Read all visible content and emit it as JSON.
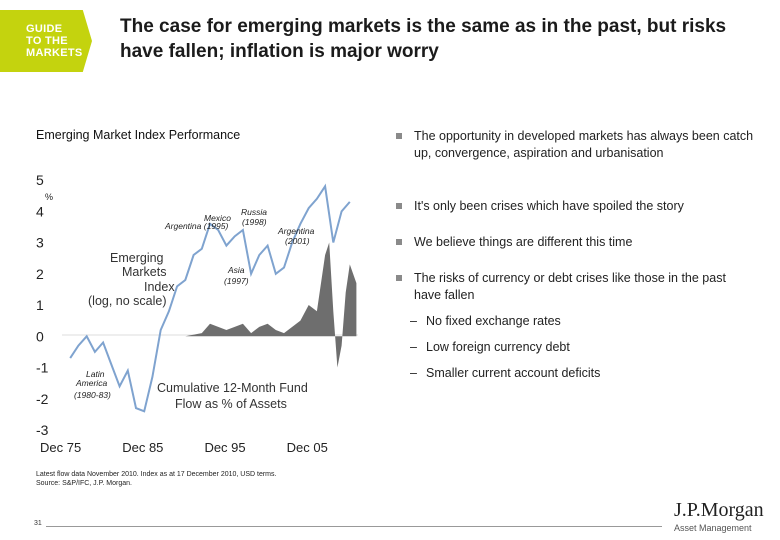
{
  "header": {
    "badge_lines": [
      "GUIDE",
      "TO THE",
      "MARKETS"
    ],
    "title": "The case for emerging markets is the same as in the past, but risks have fallen; inflation is major worry"
  },
  "chart_data": {
    "type": "line",
    "title": "Emerging Market Index Performance",
    "y_unit": "%",
    "ylim": [
      -3,
      5
    ],
    "y_ticks": [
      "5",
      "4",
      "3",
      "2",
      "1",
      "0",
      "-1",
      "-2",
      "-3"
    ],
    "x_ticks": [
      "Dec 75",
      "Dec 85",
      "Dec 95",
      "Dec 05"
    ],
    "grid": false,
    "series": [
      {
        "name": "Emerging Markets Index (log, no scale)",
        "kind": "line",
        "color": "#7fa3cf",
        "x": [
          1976,
          1977,
          1978,
          1979,
          1980,
          1981,
          1982,
          1983,
          1984,
          1985,
          1986,
          1987,
          1988,
          1989,
          1990,
          1991,
          1992,
          1993,
          1994,
          1995,
          1996,
          1997,
          1998,
          1999,
          2000,
          2001,
          2002,
          2003,
          2004,
          2005,
          2006,
          2007,
          2008,
          2009,
          2010
        ],
        "values": [
          -0.7,
          -0.3,
          0.0,
          -0.5,
          -0.2,
          -0.9,
          -1.6,
          -1.1,
          -2.3,
          -2.4,
          -1.3,
          0.2,
          0.8,
          1.6,
          1.8,
          2.6,
          2.8,
          3.6,
          3.4,
          2.9,
          3.2,
          3.4,
          2.0,
          2.6,
          2.9,
          2.0,
          2.2,
          3.0,
          3.6,
          4.1,
          4.4,
          4.8,
          3.0,
          4.0,
          4.3
        ]
      },
      {
        "name": "Cumulative 12-Month Fund Flow as % of Assets",
        "kind": "area",
        "color": "#6e6e6e",
        "x": [
          1976,
          1990,
          1992,
          1993,
          1994,
          1995,
          1996,
          1997,
          1998,
          1999,
          2000,
          2001,
          2002,
          2003,
          2004,
          2005,
          2006,
          2007,
          2007.5,
          2008,
          2008.5,
          2009,
          2009.5,
          2010,
          2010.8
        ],
        "values": [
          0,
          0,
          0.1,
          0.4,
          0.3,
          0.2,
          0.3,
          0.4,
          0.1,
          0.3,
          0.4,
          0.2,
          0.1,
          0.3,
          0.5,
          1.0,
          0.8,
          2.6,
          3.0,
          0.8,
          -1.0,
          -0.3,
          1.4,
          2.3,
          1.7
        ]
      }
    ],
    "annotations": [
      {
        "text": "Latin America (1980-83)",
        "x": 1980,
        "y": -1.5
      },
      {
        "text": "Mexico Argentina (1995)",
        "x": 1993,
        "y": 3.6
      },
      {
        "text": "Russia (1998)",
        "x": 1998,
        "y": 3.7
      },
      {
        "text": "Argentina (2001)",
        "x": 2001,
        "y": 3.0
      },
      {
        "text": "Asia (1997)",
        "x": 1997,
        "y": 1.9
      },
      {
        "text": "Emerging Markets Index (log, no scale)",
        "x": 1983,
        "y": 2.5
      },
      {
        "text": "Cumulative 12-Month Fund Flow as % of Assets",
        "x": 1989,
        "y": -1.7
      }
    ]
  },
  "labels": {
    "latin": [
      "Latin",
      "America",
      "(1980-83)"
    ],
    "mexico": [
      "Mexico",
      "Argentina (1995)"
    ],
    "russia": [
      "Russia",
      "(1998)"
    ],
    "argentina": [
      "Argentina",
      "(2001)"
    ],
    "asia": [
      "Asia",
      "(1997)"
    ],
    "em_index": [
      "Emerging",
      "Markets",
      "Index",
      "(log, no scale)"
    ],
    "fund_flow": [
      "Cumulative 12-Month Fund",
      "Flow as % of Assets"
    ]
  },
  "footnote": [
    "Latest flow data November 2010. Index as at 17 December 2010, USD terms.",
    "Source: S&P/IFC, J.P. Morgan."
  ],
  "bullets": [
    {
      "text": "The opportunity in developed markets has always been catch up, convergence, aspiration and urbanisation"
    },
    {
      "text": "It's only been crises which have spoiled the story"
    },
    {
      "text": "We believe things are different this time"
    },
    {
      "text": "The risks of currency or debt crises like those in the past have fallen"
    }
  ],
  "sub_bullets": [
    "No fixed exchange rates",
    "Low foreign currency debt",
    "Smaller current account deficits"
  ],
  "page_number": "31",
  "logo": {
    "name": "J.P.Morgan",
    "sub": "Asset Management"
  }
}
